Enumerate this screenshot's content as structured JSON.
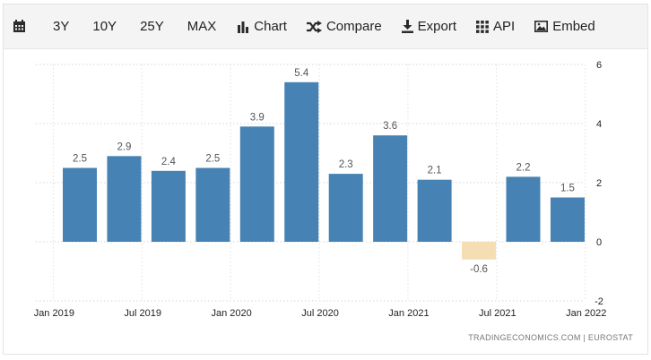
{
  "toolbar": {
    "items": [
      {
        "name": "calendar-button",
        "icon": "calendar-icon",
        "label": ""
      },
      {
        "name": "range-3y-button",
        "icon": "",
        "label": "3Y"
      },
      {
        "name": "range-10y-button",
        "icon": "",
        "label": "10Y"
      },
      {
        "name": "range-25y-button",
        "icon": "",
        "label": "25Y"
      },
      {
        "name": "range-max-button",
        "icon": "",
        "label": "MAX"
      },
      {
        "name": "chart-button",
        "icon": "bar-chart-icon",
        "label": "Chart"
      },
      {
        "name": "compare-button",
        "icon": "shuffle-icon",
        "label": "Compare"
      },
      {
        "name": "export-button",
        "icon": "download-icon",
        "label": "Export"
      },
      {
        "name": "api-button",
        "icon": "grid-icon",
        "label": "API"
      },
      {
        "name": "embed-button",
        "icon": "image-icon",
        "label": "Embed"
      }
    ]
  },
  "credit": "TRADINGECONOMICS.COM  |  EUROSTAT",
  "chart_data": {
    "type": "bar",
    "categories": [
      "2019 Q1",
      "2019 Q2",
      "2019 Q3",
      "2019 Q4",
      "2020 Q1",
      "2020 Q2",
      "2020 Q3",
      "2020 Q4",
      "2021 Q1",
      "2021 Q2",
      "2021 Q3",
      "2021 Q4"
    ],
    "values": [
      2.5,
      2.9,
      2.4,
      2.5,
      3.9,
      5.4,
      2.3,
      3.6,
      2.1,
      -0.6,
      2.2,
      1.5
    ],
    "data_labels": [
      "2.5",
      "2.9",
      "2.4",
      "2.5",
      "3.9",
      "5.4",
      "2.3",
      "3.6",
      "2.1",
      "-0.6",
      "2.2",
      "1.5"
    ],
    "x_tick_labels": [
      "Jan 2019",
      "Jul 2019",
      "Jan 2020",
      "Jul 2020",
      "Jan 2021",
      "Jul 2021",
      "Jan 2022"
    ],
    "y_ticks": [
      -2,
      0,
      2,
      4,
      6
    ],
    "ylim": [
      -2,
      6
    ],
    "y_axis_side": "right",
    "grid": true,
    "colors": {
      "positive": "#4682b4",
      "negative": "#f5deb3"
    },
    "title": "",
    "xlabel": "",
    "ylabel": ""
  }
}
